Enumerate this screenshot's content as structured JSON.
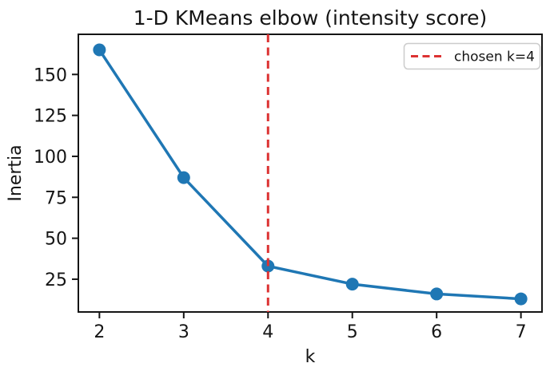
{
  "chart_data": {
    "type": "line",
    "title": "1-D KMeans elbow (intensity score)",
    "xlabel": "k",
    "ylabel": "Inertia",
    "x": [
      2,
      3,
      4,
      5,
      6,
      7
    ],
    "series": [
      {
        "name": "inertia",
        "values": [
          165,
          87,
          33,
          22,
          16,
          13
        ]
      }
    ],
    "xticks": [
      2,
      3,
      4,
      5,
      6,
      7
    ],
    "yticks": [
      25,
      50,
      75,
      100,
      125,
      150
    ],
    "xlim": [
      1.75,
      7.25
    ],
    "ylim": [
      5,
      174.5
    ],
    "grid": false,
    "line_color": "#1f77b4",
    "marker": "o",
    "annotations": [
      {
        "type": "vline",
        "x": 4,
        "style": "dashed",
        "color": "#dc3232"
      }
    ],
    "legend": {
      "position": "upper right",
      "entries": [
        {
          "label": "chosen k=4",
          "style": "dashed",
          "color": "#dc3232"
        }
      ]
    }
  }
}
